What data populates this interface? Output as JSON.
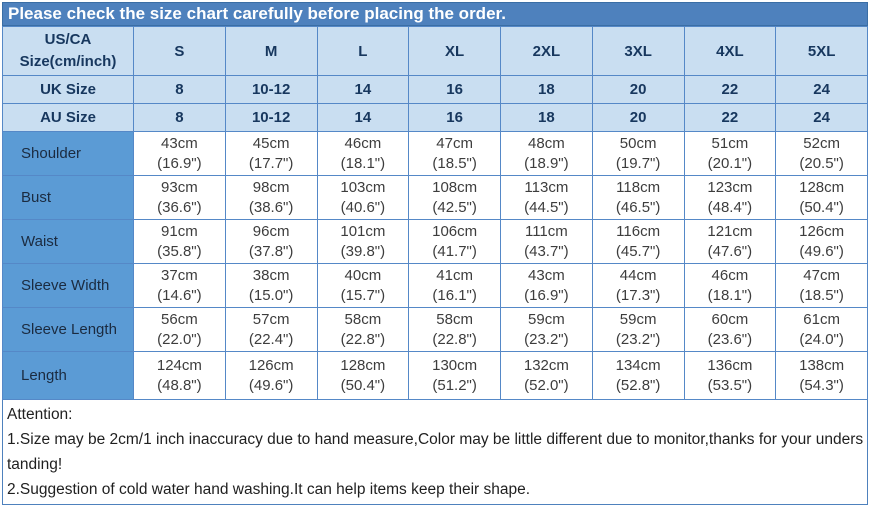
{
  "banner": {
    "text": "Please check the size chart carefully before placing the order."
  },
  "table": {
    "corner_header": {
      "line1": "US/CA",
      "line2": "Size(cm/inch)"
    },
    "size_columns": [
      "S",
      "M",
      "L",
      "XL",
      "2XL",
      "3XL",
      "4XL",
      "5XL"
    ],
    "size_rows": [
      {
        "label": "UK Size",
        "values": [
          "8",
          "10-12",
          "14",
          "16",
          "18",
          "20",
          "22",
          "24"
        ]
      },
      {
        "label": "AU Size",
        "values": [
          "8",
          "10-12",
          "14",
          "16",
          "18",
          "20",
          "22",
          "24"
        ]
      }
    ],
    "measurement_rows": [
      {
        "label": "Shoulder",
        "cm": [
          "43cm",
          "45cm",
          "46cm",
          "47cm",
          "48cm",
          "50cm",
          "51cm",
          "52cm"
        ],
        "inch": [
          "(16.9\")",
          "(17.7\")",
          "(18.1\")",
          "(18.5\")",
          "(18.9\")",
          "(19.7\")",
          "(20.1\")",
          "(20.5\")"
        ]
      },
      {
        "label": "Bust",
        "cm": [
          "93cm",
          "98cm",
          "103cm",
          "108cm",
          "113cm",
          "118cm",
          "123cm",
          "128cm"
        ],
        "inch": [
          "(36.6\")",
          "(38.6\")",
          "(40.6\")",
          "(42.5\")",
          "(44.5\")",
          "(46.5\")",
          "(48.4\")",
          "(50.4\")"
        ]
      },
      {
        "label": "Waist",
        "cm": [
          "91cm",
          "96cm",
          "101cm",
          "106cm",
          "111cm",
          "116cm",
          "121cm",
          "126cm"
        ],
        "inch": [
          "(35.8\")",
          "(37.8\")",
          "(39.8\")",
          "(41.7\")",
          "(43.7\")",
          "(45.7\")",
          "(47.6\")",
          "(49.6\")"
        ]
      },
      {
        "label": "Sleeve Width",
        "cm": [
          "37cm",
          "38cm",
          "40cm",
          "41cm",
          "43cm",
          "44cm",
          "46cm",
          "47cm"
        ],
        "inch": [
          "(14.6\")",
          "(15.0\")",
          "(15.7\")",
          "(16.1\")",
          "(16.9\")",
          "(17.3\")",
          "(18.1\")",
          "(18.5\")"
        ]
      },
      {
        "label": "Sleeve Length",
        "cm": [
          "56cm",
          "57cm",
          "58cm",
          "58cm",
          "59cm",
          "59cm",
          "60cm",
          "61cm"
        ],
        "inch": [
          "(22.0\")",
          "(22.4\")",
          "(22.8\")",
          "(22.8\")",
          "(23.2\")",
          "(23.2\")",
          "(23.6\")",
          "(24.0\")"
        ]
      },
      {
        "label": "Length",
        "cm": [
          "124cm",
          "126cm",
          "128cm",
          "130cm",
          "132cm",
          "134cm",
          "136cm",
          "138cm"
        ],
        "inch": [
          "(48.8\")",
          "(49.6\")",
          "(50.4\")",
          "(51.2\")",
          "(52.0\")",
          "(52.8\")",
          "(53.5\")",
          "(54.3\")"
        ]
      }
    ]
  },
  "attention": {
    "heading": "Attention:",
    "notes": [
      "1.Size may be 2cm/1 inch inaccuracy due to hand measure,Color may be little different due to monitor,thanks for your understanding!",
      "2.Suggestion of cold water hand washing.It can help items keep their shape."
    ]
  },
  "colors": {
    "banner_bg": "#4E81BD",
    "header_bg": "#C9DEF1",
    "label_bg": "#5B9BD5",
    "grid_border": "#5588C7",
    "outer_border": "#3A6EA5",
    "header_text": "#17375E"
  },
  "chart_data": {
    "type": "table",
    "title": "Please check the size chart carefully before placing the order.",
    "columns": [
      "US/CA Size(cm/inch)",
      "S",
      "M",
      "L",
      "XL",
      "2XL",
      "3XL",
      "4XL",
      "5XL"
    ],
    "rows": [
      [
        "UK Size",
        "8",
        "10-12",
        "14",
        "16",
        "18",
        "20",
        "22",
        "24"
      ],
      [
        "AU Size",
        "8",
        "10-12",
        "14",
        "16",
        "18",
        "20",
        "22",
        "24"
      ],
      [
        "Shoulder",
        "43cm (16.9\")",
        "45cm (17.7\")",
        "46cm (18.1\")",
        "47cm (18.5\")",
        "48cm (18.9\")",
        "50cm (19.7\")",
        "51cm (20.1\")",
        "52cm (20.5\")"
      ],
      [
        "Bust",
        "93cm (36.6\")",
        "98cm (38.6\")",
        "103cm (40.6\")",
        "108cm (42.5\")",
        "113cm (44.5\")",
        "118cm (46.5\")",
        "123cm (48.4\")",
        "128cm (50.4\")"
      ],
      [
        "Waist",
        "91cm (35.8\")",
        "96cm (37.8\")",
        "101cm (39.8\")",
        "106cm (41.7\")",
        "111cm (43.7\")",
        "116cm (45.7\")",
        "121cm (47.6\")",
        "126cm (49.6\")"
      ],
      [
        "Sleeve Width",
        "37cm (14.6\")",
        "38cm (15.0\")",
        "40cm (15.7\")",
        "41cm (16.1\")",
        "43cm (16.9\")",
        "44cm (17.3\")",
        "46cm (18.1\")",
        "47cm (18.5\")"
      ],
      [
        "Sleeve Length",
        "56cm (22.0\")",
        "57cm (22.4\")",
        "58cm (22.8\")",
        "58cm (22.8\")",
        "59cm (23.2\")",
        "59cm (23.2\")",
        "60cm (23.6\")",
        "61cm (24.0\")"
      ],
      [
        "Length",
        "124cm (48.8\")",
        "126cm (49.6\")",
        "128cm (50.4\")",
        "130cm (51.2\")",
        "132cm (52.0\")",
        "134cm (52.8\")",
        "136cm (53.5\")",
        "138cm (54.3\")"
      ]
    ],
    "notes": [
      "Attention:",
      "1.Size may be 2cm/1 inch inaccuracy due to hand measure,Color may be little different due to monitor,thanks for your understanding!",
      "2.Suggestion of cold water hand washing.It can help items keep their shape."
    ]
  }
}
